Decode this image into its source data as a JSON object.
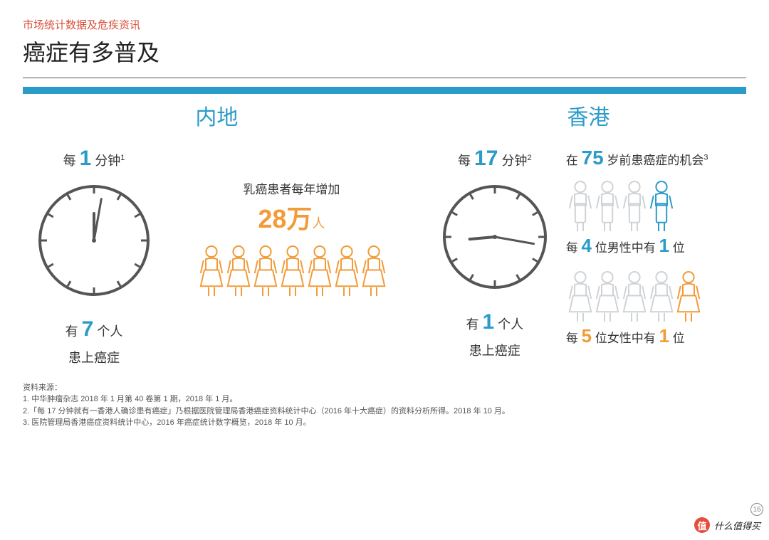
{
  "header": {
    "subtitle": "市场统计数据及危疾资讯",
    "subtitle_color": "#d94f3a",
    "title": "癌症有多普及",
    "accent_color": "#2b9bc9"
  },
  "colors": {
    "accent_blue": "#2b9bc9",
    "accent_orange": "#f29b38",
    "icon_gray": "#cfd3d6",
    "text_dark": "#333333",
    "clock_stroke": "#555555"
  },
  "mainland": {
    "region_label": "内地",
    "minute_prefix": "每",
    "minute_value": "1",
    "minute_suffix": "分钟",
    "minute_sup": "1",
    "clock": {
      "hour_angle": 360,
      "minute_angle": 10
    },
    "people_prefix": "有",
    "people_value": "7",
    "people_suffix": "个人",
    "diag_line": "患上癌症",
    "breast_title": "乳癌患者每年增加",
    "breast_value": "28",
    "breast_unit": "万",
    "breast_suffix": "人",
    "women_count": 7
  },
  "hk": {
    "region_label": "香港",
    "minute_prefix": "每",
    "minute_value": "17",
    "minute_suffix": "分钟",
    "minute_sup": "2",
    "clock": {
      "hour_angle": 265,
      "minute_angle": 100
    },
    "people_prefix": "有",
    "people_value": "1",
    "people_suffix": "个人",
    "diag_line": "患上癌症",
    "chance_prefix": "在",
    "chance_age": "75",
    "chance_suffix": "岁前患癌症的机会",
    "chance_sup": "3",
    "male_total": 4,
    "male_highlight": 4,
    "male_line_a": "每",
    "male_line_b": "位男性中有",
    "male_line_c": "位",
    "male_val_a": "4",
    "male_val_b": "1",
    "female_total": 5,
    "female_highlight": 5,
    "female_line_a": "每",
    "female_line_b": "位女性中有",
    "female_line_c": "位",
    "female_val_a": "5",
    "female_val_b": "1"
  },
  "sources": {
    "heading": "资料来源：",
    "items": [
      "1. 中华肿瘤杂志 2018 年 1 月第 40 卷第 1 期，2018 年 1 月。",
      "2.「每 17 分钟就有一香港人确诊患有癌症」乃根据医院管理局香港癌症资料统计中心（2016 年十大癌症）的资料分析所得。2018 年 10 月。",
      "3. 医院管理局香港癌症资料统计中心，2016 年癌症统计数字概览，2018 年 10 月。"
    ]
  },
  "watermark": {
    "badge": "值",
    "text": "什么值得买"
  },
  "page_number": "16"
}
